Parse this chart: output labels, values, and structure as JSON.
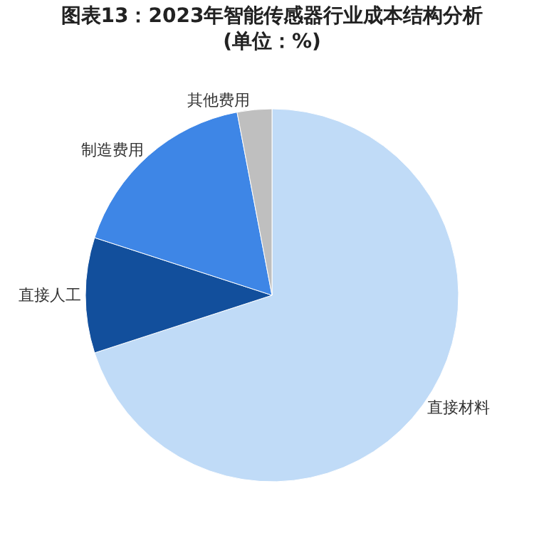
{
  "chart_data": {
    "type": "pie",
    "title": "图表13：2023年智能传感器行业成本结构分析\n(单位：%)",
    "categories": [
      "直接材料",
      "直接人工",
      "制造费用",
      "其他费用"
    ],
    "values": [
      70,
      10,
      17,
      3
    ],
    "colors": [
      "#c0dbf7",
      "#124f9c",
      "#3e86e6",
      "#bfbfbf"
    ],
    "legend": false
  }
}
